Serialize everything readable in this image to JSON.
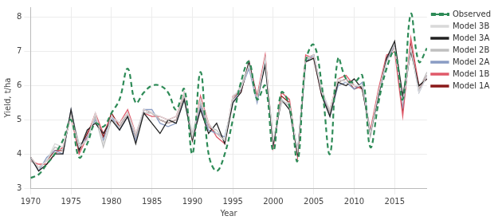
{
  "chart_data": {
    "type": "line",
    "x_label": "Year",
    "y_label": "Yield, t/ha",
    "x": [
      1970,
      1971,
      1972,
      1973,
      1974,
      1975,
      1976,
      1977,
      1978,
      1979,
      1980,
      1981,
      1982,
      1983,
      1984,
      1985,
      1986,
      1987,
      1988,
      1989,
      1990,
      1991,
      1992,
      1993,
      1994,
      1995,
      1996,
      1997,
      1998,
      1999,
      2000,
      2001,
      2002,
      2003,
      2004,
      2005,
      2006,
      2007,
      2008,
      2009,
      2010,
      2011,
      2012,
      2013,
      2014,
      2015,
      2016,
      2017,
      2018,
      2019
    ],
    "xlim": [
      1970,
      2019
    ],
    "xticks": [
      1970,
      1975,
      1980,
      1985,
      1990,
      1995,
      2000,
      2005,
      2010,
      2015
    ],
    "ylim": [
      3,
      8.3
    ],
    "yticks": [
      3,
      4,
      5,
      6,
      7,
      8
    ],
    "grid": true,
    "legend": "top-right",
    "series": [
      {
        "name": "Observed",
        "color": "#2e8b57",
        "line_style": "dashed",
        "values": [
          3.3,
          3.4,
          3.7,
          4.0,
          4.4,
          5.0,
          3.9,
          4.3,
          4.9,
          4.8,
          5.2,
          5.6,
          6.5,
          5.5,
          5.8,
          6.0,
          6.0,
          5.8,
          5.3,
          5.9,
          4.0,
          6.4,
          4.0,
          3.5,
          4.0,
          5.0,
          6.1,
          6.7,
          5.6,
          6.0,
          4.1,
          5.8,
          5.4,
          3.8,
          6.7,
          7.2,
          6.0,
          4.0,
          6.8,
          6.2,
          6.1,
          6.3,
          4.2,
          5.5,
          6.5,
          7.0,
          5.6,
          8.1,
          6.7,
          7.1
        ]
      },
      {
        "name": "Model 1A",
        "color": "#8b1a1a",
        "line_style": "solid",
        "values": [
          3.9,
          3.6,
          3.8,
          4.1,
          4.1,
          5.2,
          4.1,
          4.6,
          5.1,
          4.5,
          5.2,
          4.8,
          5.2,
          4.5,
          5.3,
          5.2,
          5.0,
          4.9,
          5.0,
          5.7,
          4.5,
          5.5,
          4.8,
          4.6,
          4.4,
          5.6,
          5.9,
          6.6,
          5.6,
          6.8,
          4.3,
          5.7,
          5.5,
          4.0,
          6.8,
          6.9,
          5.8,
          5.2,
          6.1,
          6.2,
          5.9,
          6.0,
          4.6,
          5.8,
          6.8,
          7.1,
          5.3,
          7.2,
          5.9,
          6.3
        ]
      },
      {
        "name": "Model 1B",
        "color": "#e05a6a",
        "line_style": "solid",
        "values": [
          3.8,
          3.7,
          3.7,
          4.0,
          4.2,
          5.1,
          4.0,
          4.5,
          5.2,
          4.6,
          5.1,
          4.9,
          5.3,
          4.6,
          5.2,
          5.1,
          5.1,
          5.0,
          5.1,
          5.8,
          4.4,
          5.7,
          4.9,
          4.5,
          4.3,
          5.7,
          5.8,
          6.7,
          5.7,
          6.9,
          4.2,
          5.8,
          5.6,
          3.9,
          6.9,
          6.8,
          5.7,
          5.3,
          6.2,
          6.3,
          6.0,
          5.9,
          4.7,
          5.9,
          6.9,
          7.0,
          5.1,
          7.4,
          6.0,
          6.2
        ]
      },
      {
        "name": "Model 2A",
        "color": "#8a9cc4",
        "line_style": "solid",
        "values": [
          3.9,
          3.5,
          3.9,
          4.1,
          4.0,
          5.3,
          4.2,
          4.5,
          5.0,
          4.4,
          5.1,
          4.7,
          5.1,
          4.4,
          5.3,
          5.3,
          4.9,
          4.8,
          4.9,
          5.6,
          4.5,
          5.4,
          4.7,
          4.6,
          4.5,
          5.5,
          5.9,
          6.5,
          5.5,
          6.7,
          4.3,
          5.6,
          5.4,
          4.1,
          6.7,
          6.9,
          5.8,
          5.1,
          6.0,
          6.1,
          5.9,
          6.1,
          4.6,
          5.7,
          6.7,
          7.2,
          5.4,
          7.1,
          5.8,
          6.3
        ]
      },
      {
        "name": "Model 2B",
        "color": "#c0c0c0",
        "line_style": "solid",
        "values": [
          3.8,
          3.6,
          3.8,
          4.2,
          4.1,
          5.2,
          4.3,
          4.4,
          5.1,
          4.2,
          5.0,
          4.8,
          5.2,
          4.5,
          5.2,
          5.2,
          5.0,
          4.9,
          5.0,
          5.7,
          4.6,
          5.5,
          4.8,
          4.7,
          4.4,
          5.6,
          6.0,
          6.6,
          5.6,
          6.8,
          4.4,
          5.5,
          5.5,
          4.0,
          6.8,
          6.8,
          5.9,
          5.2,
          6.1,
          6.2,
          6.0,
          6.0,
          4.5,
          5.8,
          6.8,
          7.2,
          5.6,
          7.0,
          5.9,
          6.4
        ]
      },
      {
        "name": "Model 3A",
        "color": "#222222",
        "line_style": "solid",
        "values": [
          3.9,
          3.5,
          3.7,
          4.0,
          4.0,
          5.3,
          4.1,
          4.7,
          4.9,
          4.6,
          5.0,
          4.7,
          5.1,
          4.3,
          5.2,
          4.9,
          4.6,
          5.0,
          4.9,
          5.6,
          4.4,
          5.3,
          4.6,
          4.9,
          4.3,
          5.5,
          5.8,
          6.7,
          5.6,
          6.6,
          4.3,
          5.6,
          5.3,
          4.0,
          6.7,
          6.8,
          5.7,
          5.1,
          6.1,
          6.0,
          6.2,
          5.9,
          4.6,
          5.7,
          6.8,
          7.3,
          5.7,
          7.0,
          6.0,
          6.2
        ]
      },
      {
        "name": "Model 3B",
        "color": "#d9d9d9",
        "line_style": "solid",
        "values": [
          3.9,
          3.6,
          3.8,
          4.3,
          4.2,
          5.1,
          4.2,
          4.4,
          5.2,
          4.3,
          5.1,
          4.9,
          5.2,
          4.6,
          5.3,
          5.2,
          5.1,
          5.0,
          5.1,
          5.8,
          4.5,
          5.6,
          4.9,
          4.6,
          4.4,
          5.7,
          5.9,
          6.6,
          5.6,
          6.8,
          4.4,
          5.6,
          5.4,
          4.1,
          6.8,
          6.9,
          5.8,
          5.3,
          6.2,
          6.1,
          6.0,
          6.0,
          4.6,
          5.8,
          6.7,
          7.1,
          5.5,
          7.1,
          5.8,
          6.3
        ]
      }
    ]
  }
}
